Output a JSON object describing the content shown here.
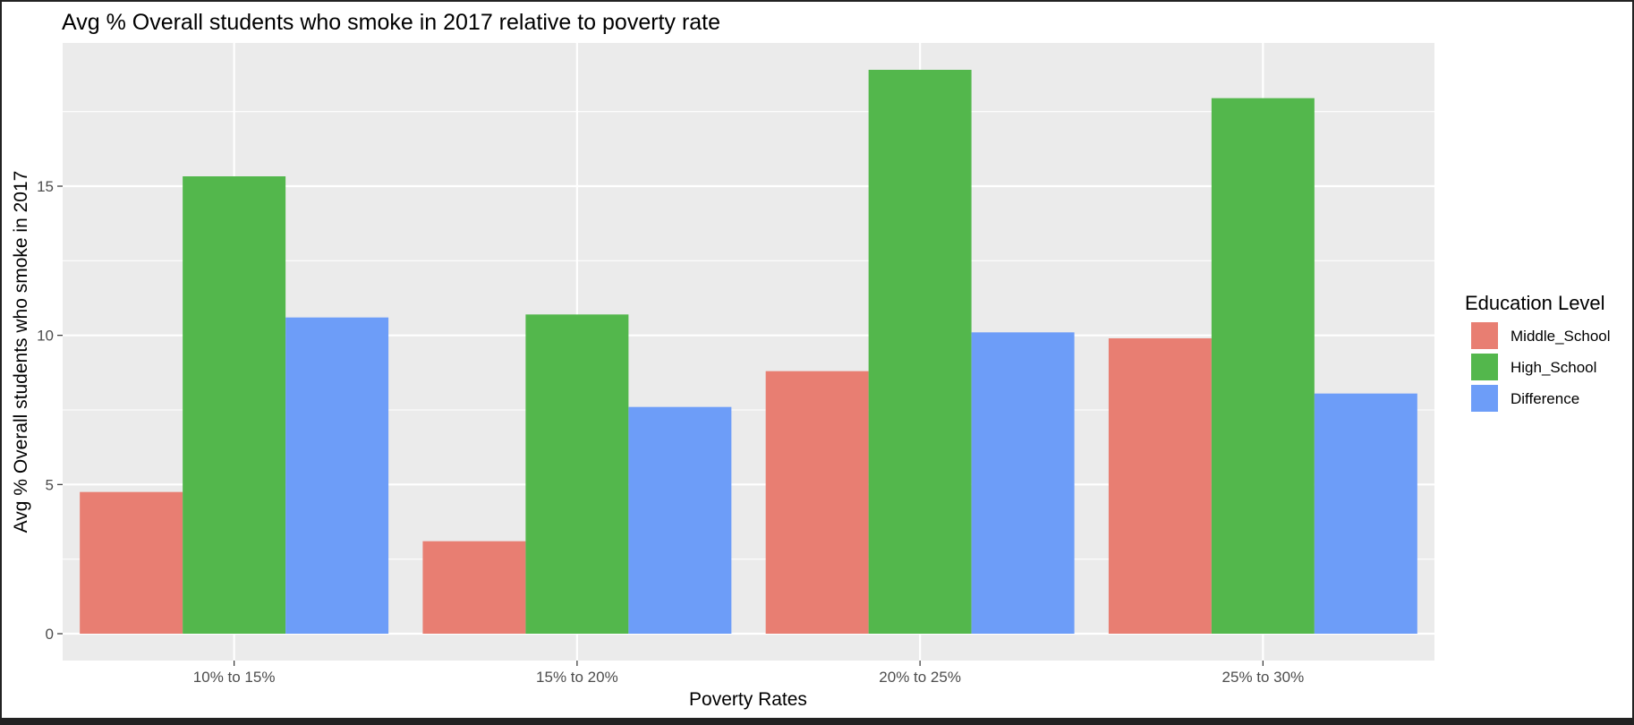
{
  "chart_data": {
    "type": "bar",
    "title": "Avg % Overall students who smoke in 2017 relative to poverty rate",
    "xlabel": "Poverty Rates",
    "ylabel": "Avg % Overall students who smoke in 2017",
    "categories": [
      "10% to 15%",
      "15% to 20%",
      "20% to 25%",
      "25% to 30%"
    ],
    "series": [
      {
        "name": "Middle_School",
        "color": "#E87E72",
        "values": [
          4.75,
          3.1,
          8.8,
          9.9
        ]
      },
      {
        "name": "High_School",
        "color": "#53B74C",
        "values": [
          15.33,
          10.7,
          18.9,
          17.95
        ]
      },
      {
        "name": "Difference",
        "color": "#6D9DF8",
        "values": [
          10.6,
          7.6,
          10.1,
          8.05
        ]
      }
    ],
    "ylim": [
      -0.9,
      19.8
    ],
    "yticks": [
      0,
      5,
      10,
      15
    ],
    "ytick_labels": [
      "0",
      "5",
      "10",
      "15"
    ],
    "grid": true,
    "legend": {
      "title": "Education Level",
      "position": "right"
    },
    "panel_color": "#EBEBEB"
  }
}
